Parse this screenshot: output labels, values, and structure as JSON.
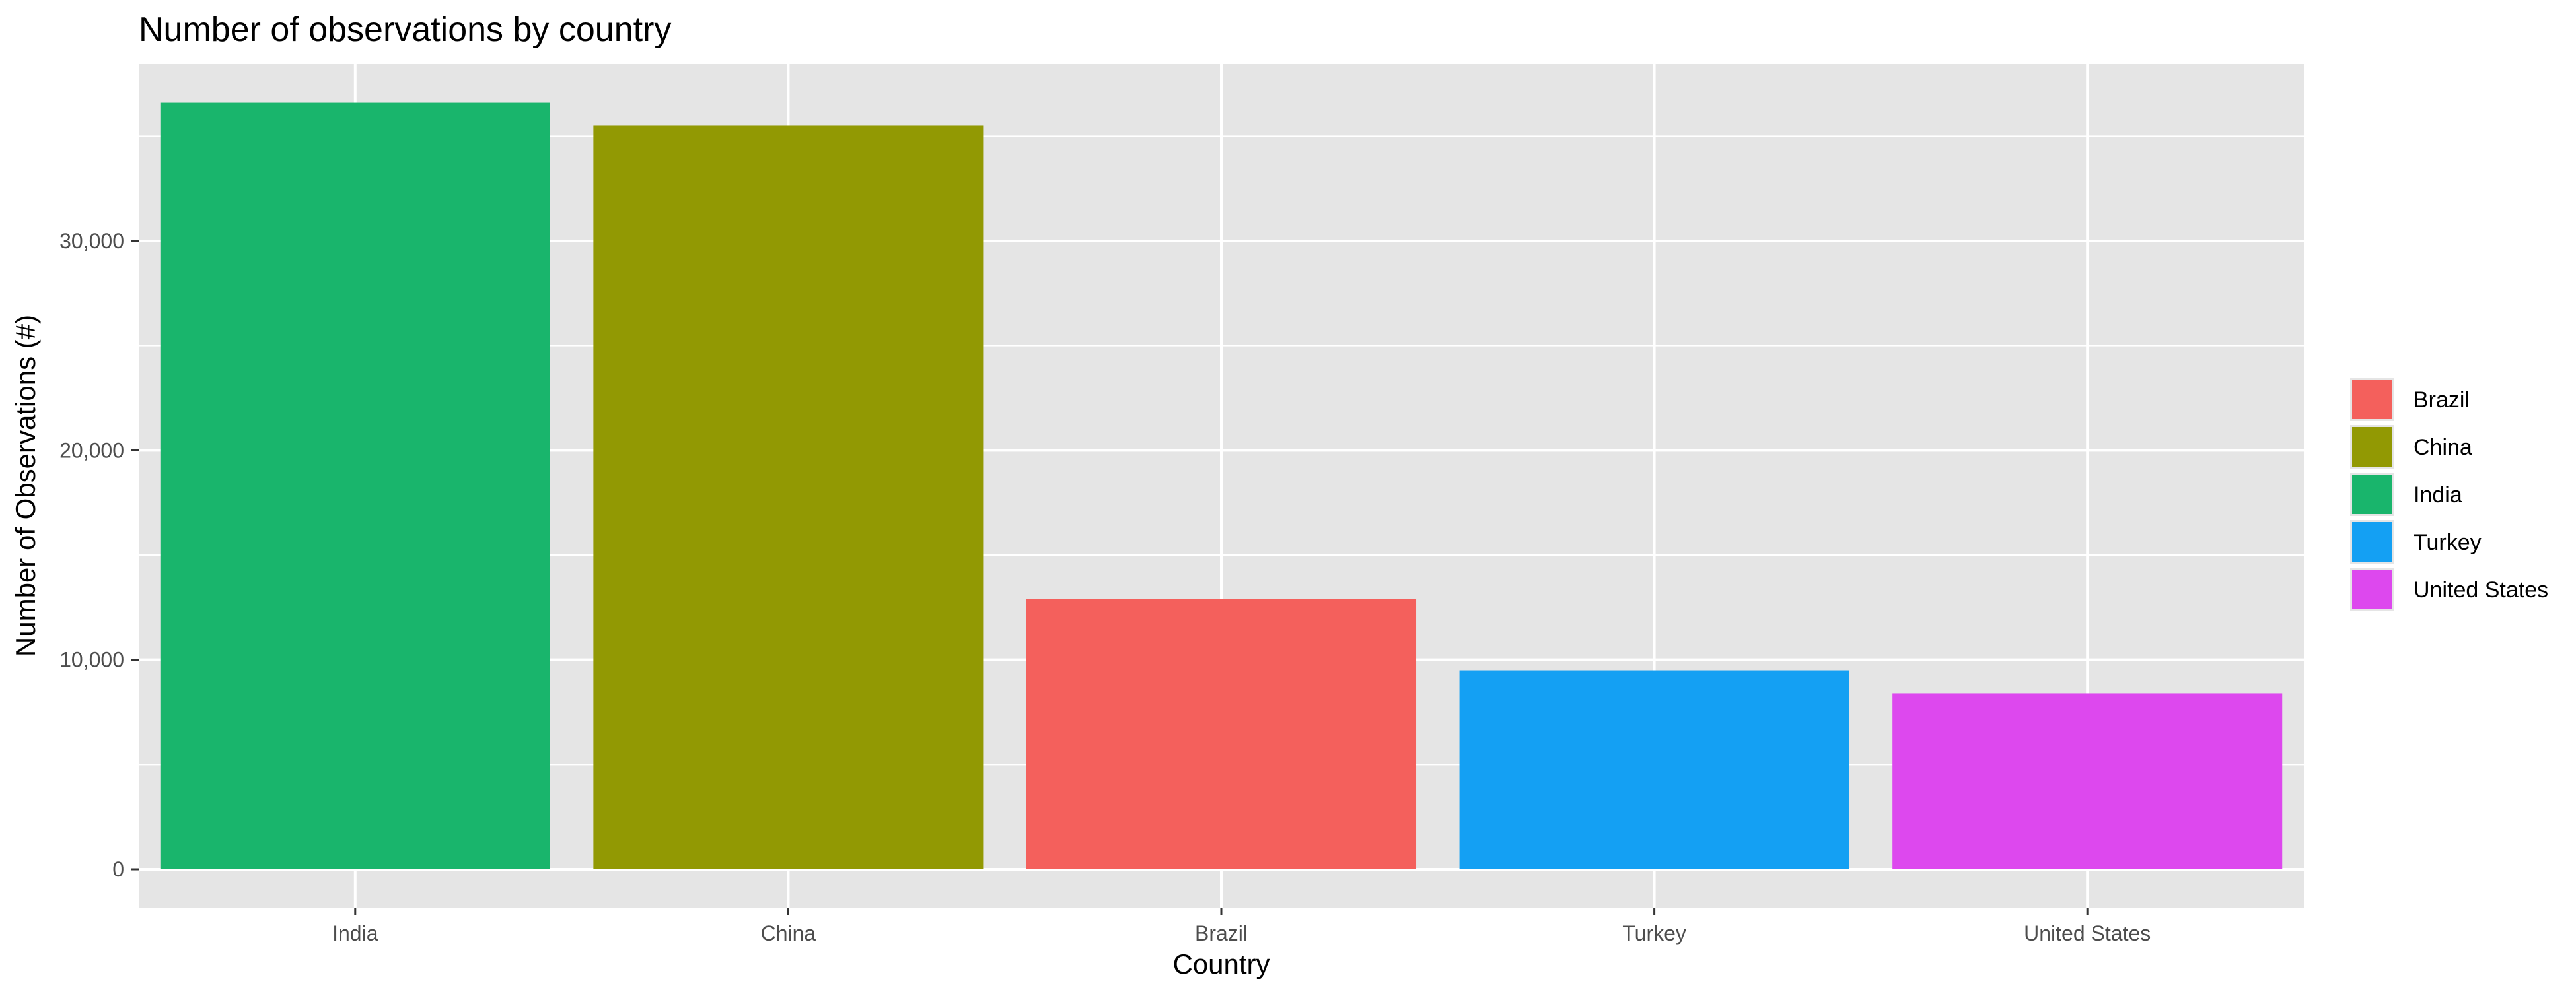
{
  "chart_data": {
    "type": "bar",
    "title": "Number of observations by country",
    "xlabel": "Country",
    "ylabel": "Number of Observations (#)",
    "categories": [
      "India",
      "China",
      "Brazil",
      "Turkey",
      "United States"
    ],
    "values": [
      36600,
      35500,
      12900,
      9500,
      8400
    ],
    "bar_colors": [
      "#19B56C",
      "#929903",
      "#F4605C",
      "#14A0F3",
      "#DD48EE"
    ],
    "ylim": [
      0,
      38400
    ],
    "yticks": [
      0,
      10000,
      20000,
      30000
    ],
    "ytick_labels": [
      "0",
      "10,000",
      "20,000",
      "30,000"
    ],
    "grid": true,
    "panel_background": "#E5E5E5",
    "grid_color": "#FFFFFF",
    "legend": {
      "placement": "right",
      "entries": [
        {
          "label": "Brazil",
          "color": "#F4605C"
        },
        {
          "label": "China",
          "color": "#929903"
        },
        {
          "label": "India",
          "color": "#19B56C"
        },
        {
          "label": "Turkey",
          "color": "#14A0F3"
        },
        {
          "label": "United States",
          "color": "#DD48EE"
        }
      ]
    }
  }
}
